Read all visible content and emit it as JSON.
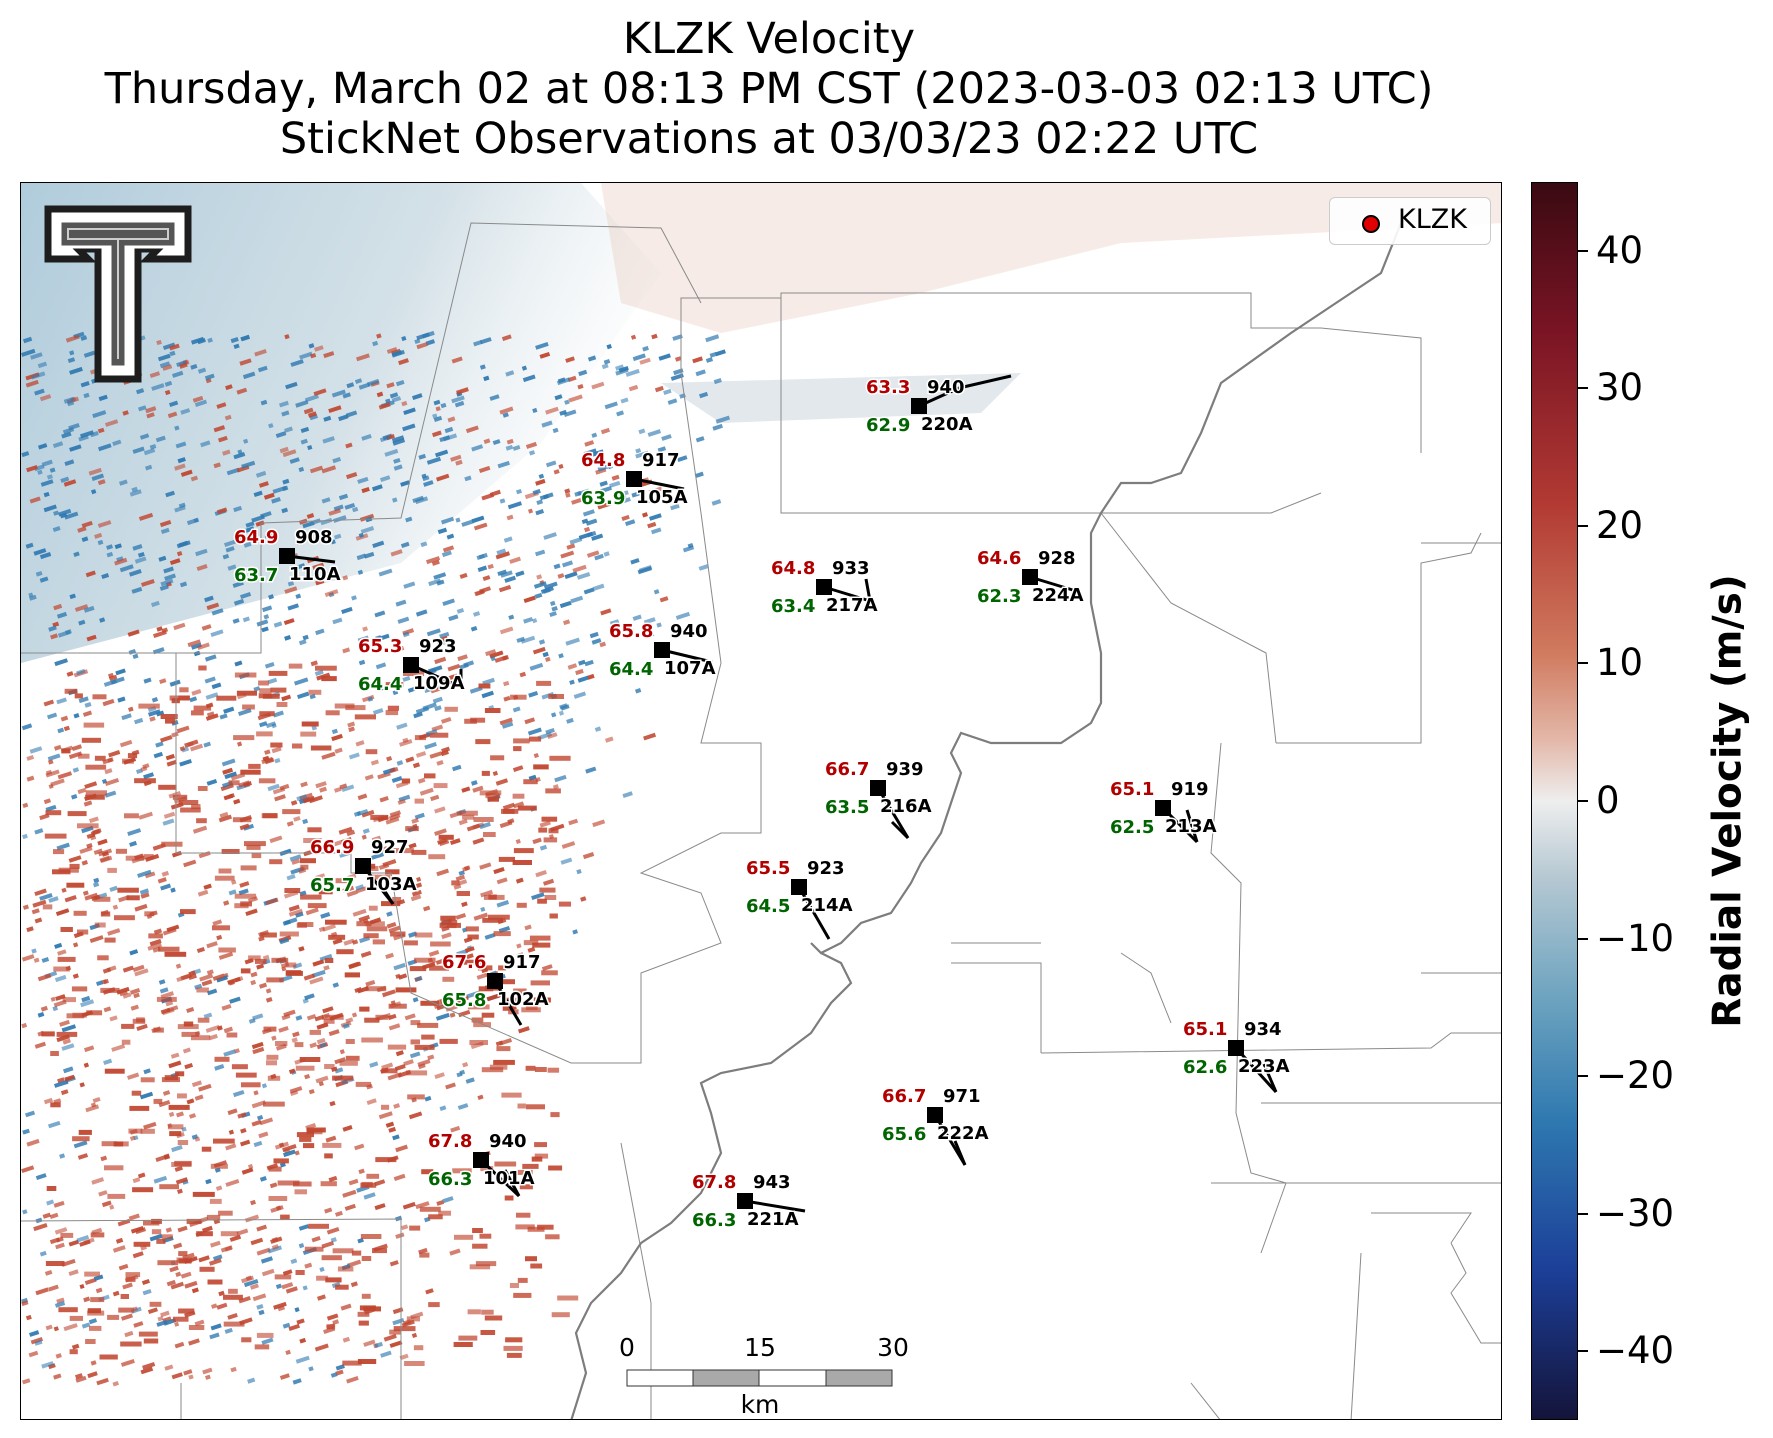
{
  "title": {
    "line1": "KLZK Velocity",
    "line2": "Thursday, March 02 at 08:13 PM CST (2023-03-03 02:13 UTC)",
    "line3": "StickNet Observations at 03/03/23 02:22 UTC"
  },
  "legend": {
    "label": "KLZK",
    "marker_color": "#e00000"
  },
  "colorbar": {
    "title": "Radial Velocity (m/s)",
    "ticks": [
      "40",
      "30",
      "20",
      "10",
      "0",
      "−10",
      "−20",
      "−30",
      "−40"
    ],
    "tick_values": [
      40,
      30,
      20,
      10,
      0,
      -10,
      -20,
      -30,
      -40
    ],
    "range": [
      -45,
      45
    ],
    "colors": {
      "positive": "#c0452e",
      "negative": "#2e78b0",
      "neutral": "#eeeeee"
    }
  },
  "scale_bar": {
    "labels": [
      "0",
      "15",
      "30"
    ],
    "unit": "km"
  },
  "logo": {
    "icon": "texas-tech-double-t-logo"
  },
  "stations": [
    {
      "id": "220A",
      "temp": "63.3",
      "dew": "62.9",
      "pressure": "940"
    },
    {
      "id": "105A",
      "temp": "64.8",
      "dew": "63.9",
      "pressure": "917"
    },
    {
      "id": "110A",
      "temp": "64.9",
      "dew": "63.7",
      "pressure": "908"
    },
    {
      "id": "217A",
      "temp": "64.8",
      "dew": "63.4",
      "pressure": "933"
    },
    {
      "id": "224A",
      "temp": "64.6",
      "dew": "62.3",
      "pressure": "928"
    },
    {
      "id": "107A",
      "temp": "65.8",
      "dew": "64.4",
      "pressure": "940"
    },
    {
      "id": "109A",
      "temp": "65.3",
      "dew": "64.4",
      "pressure": "923"
    },
    {
      "id": "216A",
      "temp": "66.7",
      "dew": "63.5",
      "pressure": "939"
    },
    {
      "id": "213A",
      "temp": "65.1",
      "dew": "62.5",
      "pressure": "919"
    },
    {
      "id": "103A",
      "temp": "66.9",
      "dew": "65.7",
      "pressure": "927"
    },
    {
      "id": "214A",
      "temp": "65.5",
      "dew": "64.5",
      "pressure": "923"
    },
    {
      "id": "102A",
      "temp": "67.6",
      "dew": "65.8",
      "pressure": "917"
    },
    {
      "id": "223A",
      "temp": "65.1",
      "dew": "62.6",
      "pressure": "934"
    },
    {
      "id": "222A",
      "temp": "66.7",
      "dew": "65.6",
      "pressure": "971"
    },
    {
      "id": "101A",
      "temp": "67.8",
      "dew": "66.3",
      "pressure": "940"
    },
    {
      "id": "221A",
      "temp": "67.8",
      "dew": "66.3",
      "pressure": "943"
    }
  ],
  "text_colors": {
    "temp": "#b00000",
    "dew": "#006400",
    "pressure": "#000000"
  }
}
